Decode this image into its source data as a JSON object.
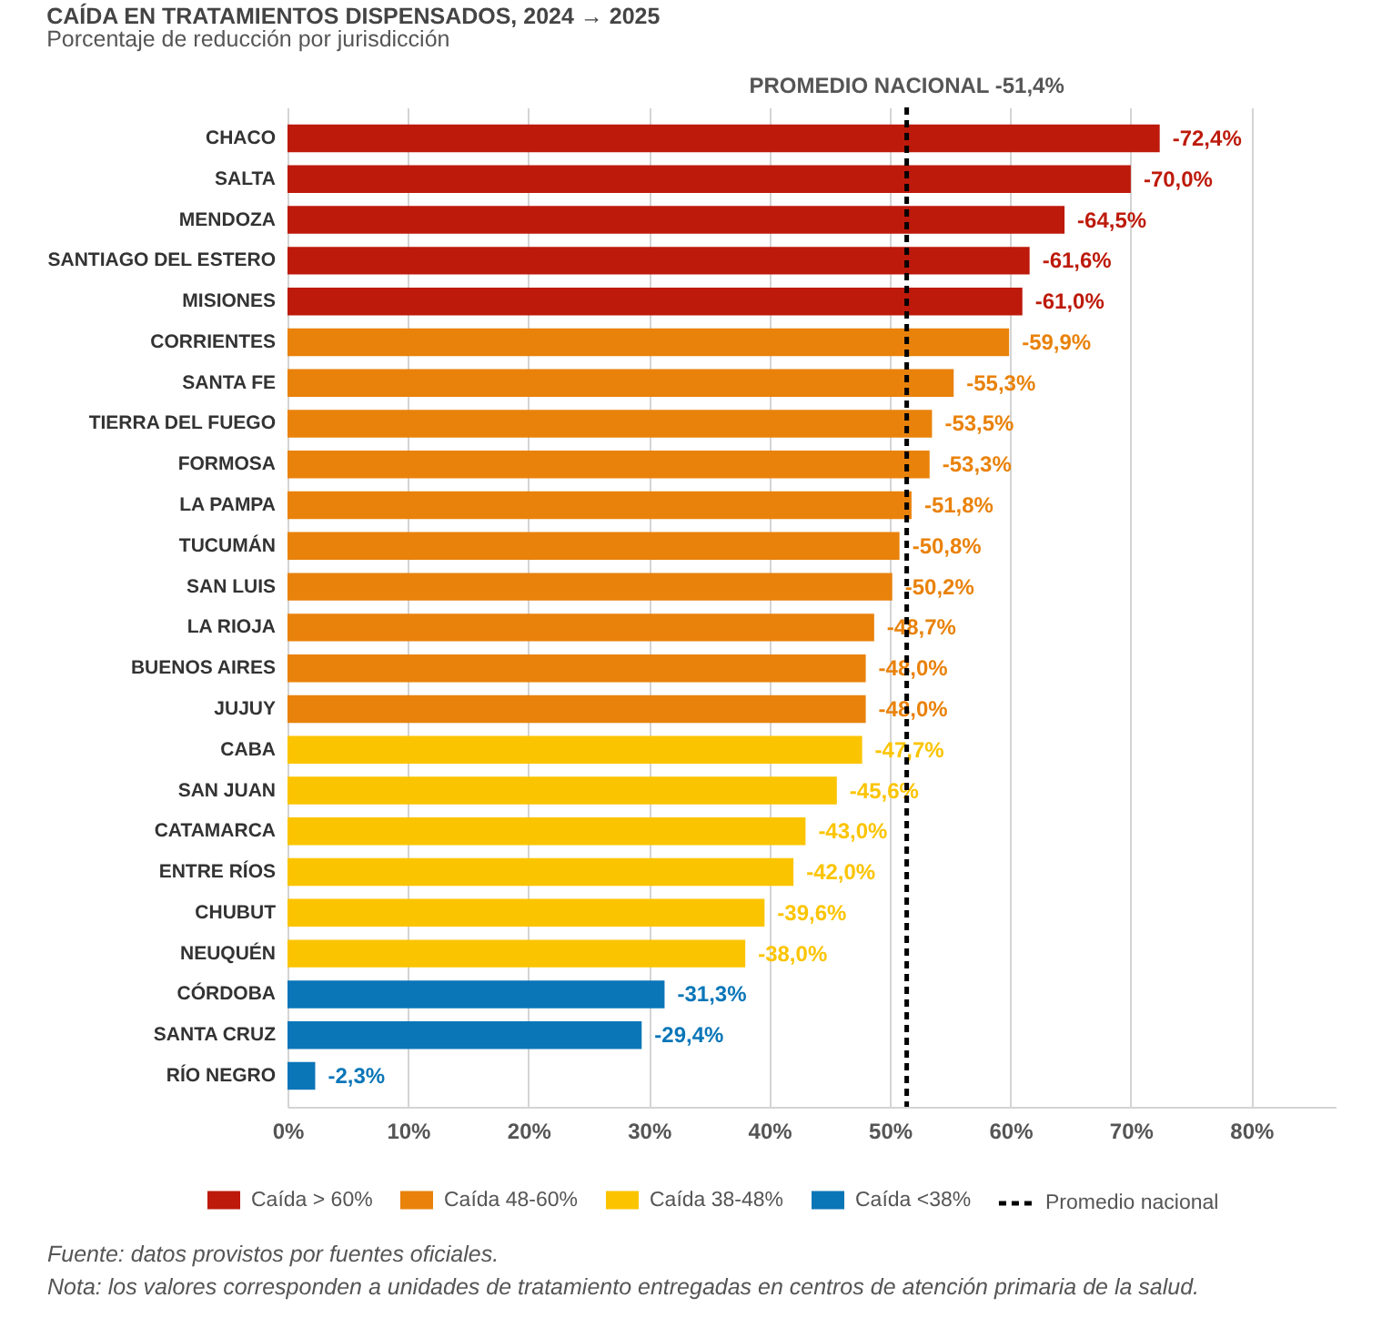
{
  "chart_data": {
    "type": "bar",
    "orientation": "horizontal",
    "stacked": true,
    "title": "CAÍDA EN TRATAMIENTOS DISPENSADOS, 2024 → 2025",
    "subtitle": "Porcentaje de reducción por jurisdicción",
    "categories": [
      "CHACO",
      "SALTA",
      "MENDOZA",
      "SANTIAGO DEL ESTERO",
      "MISIONES",
      "CORRIENTES",
      "SANTA FE",
      "TIERRA DEL FUEGO",
      "FORMOSA",
      "LA PAMPA",
      "TUCUMÁN",
      "SAN LUIS",
      "LA RIOJA",
      "BUENOS AIRES",
      "JUJUY",
      "CABA",
      "SAN JUAN",
      "CATAMARCA",
      "ENTRE RÍOS",
      "CHUBUT",
      "NEUQUÉN",
      "CÓRDOBA",
      "SANTA CRUZ",
      "RÍO NEGRO"
    ],
    "series": [
      {
        "name": "Caída > 60%",
        "color": "#bd1a0b",
        "values": [
          -72.4,
          -70.0,
          -64.5,
          -61.6,
          -61.0,
          null,
          null,
          null,
          null,
          null,
          null,
          null,
          null,
          null,
          null,
          null,
          null,
          null,
          null,
          null,
          null,
          null,
          null,
          null
        ],
        "value_labels": [
          "-72,4%",
          "-70,0%",
          "-64,5%",
          "-61,6%",
          "-61,0%",
          null,
          null,
          null,
          null,
          null,
          null,
          null,
          null,
          null,
          null,
          null,
          null,
          null,
          null,
          null,
          null,
          null,
          null,
          null
        ]
      },
      {
        "name": "Caída 48-60%",
        "color": "#e9820b",
        "values": [
          null,
          null,
          null,
          null,
          null,
          -59.9,
          -55.3,
          -53.5,
          -53.3,
          -51.8,
          -50.8,
          -50.2,
          -48.7,
          -48.0,
          -48.0,
          null,
          null,
          null,
          null,
          null,
          null,
          null,
          null,
          null
        ],
        "value_labels": [
          null,
          null,
          null,
          null,
          null,
          "-59,9%",
          "-55,3%",
          "-53,5%",
          "-53,3%",
          "-51,8%",
          "-50,8%",
          "-50,2%",
          "-48,7%",
          "-48,0%",
          "-48,0%",
          null,
          null,
          null,
          null,
          null,
          null,
          null,
          null,
          null
        ]
      },
      {
        "name": "Caída 38-48%",
        "color": "#fbc400",
        "values": [
          null,
          null,
          null,
          null,
          null,
          null,
          null,
          null,
          null,
          null,
          null,
          null,
          null,
          null,
          null,
          -47.7,
          -45.6,
          -43.0,
          -42.0,
          -39.6,
          -38.0,
          null,
          null,
          null
        ],
        "value_labels": [
          null,
          null,
          null,
          null,
          null,
          null,
          null,
          null,
          null,
          null,
          null,
          null,
          null,
          null,
          null,
          "-47,7%",
          "-45,6%",
          "-43,0%",
          "-42,0%",
          "-39,6%",
          "-38,0%",
          null,
          null,
          null
        ]
      },
      {
        "name": "Caída <38%",
        "color": "#0a76b8",
        "values": [
          null,
          null,
          null,
          null,
          null,
          null,
          null,
          null,
          null,
          null,
          null,
          null,
          null,
          null,
          null,
          null,
          null,
          null,
          null,
          null,
          null,
          -31.3,
          -29.4,
          -2.3
        ],
        "value_labels": [
          null,
          null,
          null,
          null,
          null,
          null,
          null,
          null,
          null,
          null,
          null,
          null,
          null,
          null,
          null,
          null,
          null,
          null,
          null,
          null,
          null,
          "-31,3%",
          "-29,4%",
          "-2,3%"
        ]
      }
    ],
    "xlim": [
      0,
      -87
    ],
    "xticks": [
      {
        "value": 0,
        "label": "0%"
      },
      {
        "value": -10,
        "label": "10%"
      },
      {
        "value": -20,
        "label": "20%"
      },
      {
        "value": -30,
        "label": "30%"
      },
      {
        "value": -40,
        "label": "40%"
      },
      {
        "value": -50,
        "label": "50%"
      },
      {
        "value": -60,
        "label": "60%"
      },
      {
        "value": -70,
        "label": "70%"
      },
      {
        "value": -80,
        "label": "80%"
      }
    ],
    "grid": "x",
    "legend": "bottom",
    "ref_lines": [
      {
        "axis": "x",
        "value": -51.4,
        "label": "Promedio nacional",
        "color": "#000000",
        "line_style": "dashed"
      }
    ],
    "annotations": [
      "PROMEDIO NACIONAL -51,4%",
      "Fuente: datos provistos por fuentes oficiales.",
      "Nota: los valores corresponden a unidades de tratamiento entregadas en centros de atención primaria de la salud."
    ]
  }
}
